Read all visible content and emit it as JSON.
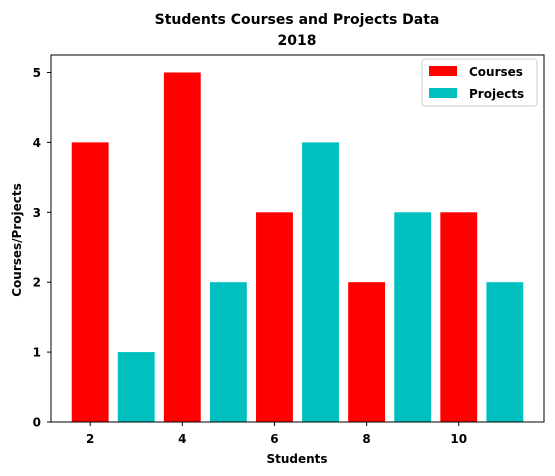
{
  "chart_data": {
    "type": "bar",
    "title": "Students Courses and Projects Data",
    "subtitle": "2018",
    "xlabel": "Students",
    "ylabel": "Courses/Projects",
    "xlim": [
      1.15,
      11.85
    ],
    "ylim": [
      0,
      5.25
    ],
    "xticks": [
      "2",
      "4",
      "6",
      "8",
      "10"
    ],
    "yticks": [
      "0",
      "1",
      "2",
      "3",
      "4",
      "5"
    ],
    "grid": false,
    "legend_position": "top-right",
    "bar_width": 0.8,
    "series": [
      {
        "name": "Courses",
        "color": "#ff0000",
        "points": [
          {
            "x": 2,
            "y": 4
          },
          {
            "x": 4,
            "y": 5
          },
          {
            "x": 6,
            "y": 3
          },
          {
            "x": 8,
            "y": 2
          },
          {
            "x": 10,
            "y": 3
          }
        ]
      },
      {
        "name": "Projects",
        "color": "#00bfbf",
        "points": [
          {
            "x": 3,
            "y": 1
          },
          {
            "x": 5,
            "y": 2
          },
          {
            "x": 7,
            "y": 4
          },
          {
            "x": 9,
            "y": 3
          },
          {
            "x": 11,
            "y": 2
          }
        ]
      }
    ]
  }
}
